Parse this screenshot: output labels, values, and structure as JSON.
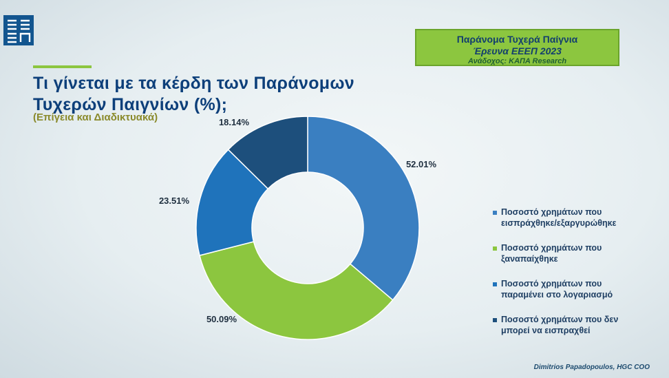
{
  "header": {
    "logo_text": "ΕΕΕΠ",
    "title_lines": [
      "Τι γίνεται με τα κέρδη των Παράνομων",
      "Τυχερών Παιγνίων (%);"
    ],
    "subtitle": "(Επίγεια και Διαδικτυακά)"
  },
  "survey_box": {
    "line1": "Παράνομα Τυχερά Παίγνια",
    "line2": "Έρευνα ΕΕΕΠ 2023",
    "line3": "Ανάδοχος: ΚΑΠΑ Research",
    "color": "#8cc63f"
  },
  "chart_data": {
    "type": "pie",
    "donut": true,
    "title": "",
    "slices": [
      {
        "label": "Ποσοστό χρημάτων που εισπράχθηκε/εξαργυρώθηκε",
        "value": 52.01,
        "value_label": "52.01%",
        "color": "#3a7fc1"
      },
      {
        "label": "Ποσοστό χρημάτων που ξαναπαίχθηκε",
        "value": 50.09,
        "value_label": "50.09%",
        "color": "#8cc63f"
      },
      {
        "label": "Ποσοστό χρημάτων που παραμένει στο λογαριασμό",
        "value": 23.51,
        "value_label": "23.51%",
        "color": "#1f73bb"
      },
      {
        "label": "Ποσοστό χρημάτων που δεν μπορεί να εισπραχθεί",
        "value": 18.14,
        "value_label": "18.14%",
        "color": "#1d4f7c"
      }
    ],
    "legend_position": "right"
  },
  "legend": {
    "items": [
      {
        "label": "Ποσοστό χρημάτων που\nεισπράχθηκε/εξαργυρώθηκε",
        "color": "#3a7fc1"
      },
      {
        "label": "Ποσοστό χρημάτων που\nξαναπαίχθηκε",
        "color": "#8cc63f"
      },
      {
        "label": "Ποσοστό χρημάτων που\nπαραμένει στο λογαριασμό",
        "color": "#1f73bb"
      },
      {
        "label": "Ποσοστό χρημάτων που δεν\nμπορεί να εισπραχθεί",
        "color": "#1d4f7c"
      }
    ]
  },
  "footer": {
    "credit": "Dimitrios Papadopoulos, HGC COO"
  }
}
